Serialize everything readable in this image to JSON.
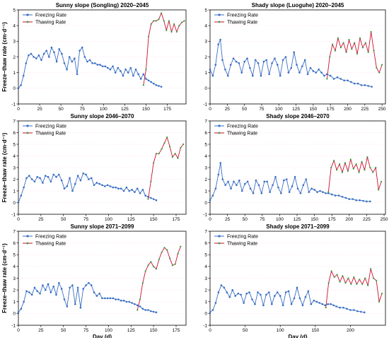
{
  "colors": {
    "freezing": "#3a6fc4",
    "thawing": "#c8102e",
    "thawing_marker": "#3a9c3a",
    "grid": "#ffb3d9",
    "axis": "#000000"
  },
  "legend": {
    "freezing": "Freezing Rate",
    "thawing": "Thawing Rate"
  },
  "chart_data": [
    {
      "type": "line",
      "title": "Sunny slope (Songling)  2020–2045",
      "xlabel": "",
      "ylabel": "Freeze–thaw rate (cm·d⁻¹)",
      "xlim": [
        0,
        197
      ],
      "ylim": [
        -1,
        5
      ],
      "xticks": [
        0,
        25,
        50,
        75,
        100,
        125,
        150,
        175
      ],
      "yticks": [
        -1,
        0,
        1,
        2,
        3,
        4,
        5
      ],
      "series": [
        {
          "name": "Freezing Rate",
          "x": [
            0,
            3,
            6,
            9,
            12,
            15,
            18,
            21,
            24,
            27,
            30,
            33,
            36,
            39,
            42,
            45,
            48,
            51,
            54,
            57,
            60,
            63,
            66,
            69,
            72,
            75,
            78,
            81,
            84,
            87,
            90,
            93,
            96,
            99,
            102,
            105,
            108,
            111,
            114,
            117,
            120,
            123,
            126,
            129,
            132,
            135,
            138,
            141,
            144,
            147,
            150,
            153,
            156,
            159,
            162,
            165,
            168
          ],
          "y": [
            0.0,
            0.2,
            0.8,
            1.6,
            2.1,
            2.2,
            2.0,
            1.9,
            2.1,
            1.8,
            2.2,
            2.4,
            2.0,
            2.6,
            2.3,
            1.7,
            2.5,
            2.2,
            1.6,
            1.2,
            2.0,
            1.7,
            1.9,
            0.9,
            2.4,
            2.6,
            2.0,
            1.7,
            1.8,
            1.6,
            1.6,
            1.5,
            1.5,
            1.4,
            1.4,
            1.3,
            1.2,
            1.4,
            1.0,
            1.3,
            1.1,
            0.8,
            1.2,
            1.0,
            1.3,
            0.8,
            1.2,
            0.9,
            0.6,
            0.9,
            0.6,
            0.5,
            0.4,
            0.3,
            0.2,
            0.15,
            0.1
          ]
        },
        {
          "name": "Thawing Rate",
          "x": [
            147,
            150,
            153,
            156,
            159,
            162,
            165,
            168,
            171,
            174,
            177,
            180,
            183,
            186,
            189,
            192,
            195
          ],
          "y": [
            0.2,
            1.2,
            3.3,
            4.1,
            4.3,
            4.3,
            4.4,
            4.8,
            4.3,
            3.7,
            4.3,
            3.6,
            4.1,
            3.6,
            4.0,
            4.2,
            4.3
          ]
        }
      ]
    },
    {
      "type": "line",
      "title": "Shady slope (Luoguhe)  2020–2045",
      "xlabel": "",
      "ylabel": "",
      "xlim": [
        0,
        255
      ],
      "ylim": [
        -1,
        5
      ],
      "xticks": [
        0,
        25,
        50,
        75,
        100,
        125,
        150,
        175,
        200,
        225,
        250
      ],
      "yticks": [
        -1,
        0,
        1,
        2,
        3,
        4,
        5
      ],
      "series": [
        {
          "name": "Freezing Rate",
          "x": [
            0,
            4,
            8,
            12,
            15,
            18,
            22,
            26,
            30,
            34,
            38,
            42,
            46,
            50,
            54,
            58,
            62,
            66,
            70,
            74,
            78,
            82,
            86,
            90,
            94,
            98,
            102,
            106,
            110,
            114,
            118,
            122,
            126,
            130,
            134,
            138,
            142,
            146,
            150,
            154,
            158,
            162,
            166,
            170,
            175,
            180,
            185,
            190,
            195,
            200,
            205,
            210,
            215,
            220,
            225,
            230,
            235
          ],
          "y": [
            1.2,
            0.8,
            1.5,
            2.8,
            3.1,
            1.8,
            1.2,
            0.8,
            1.5,
            1.9,
            1.7,
            1.6,
            1.0,
            1.7,
            1.9,
            1.3,
            0.8,
            1.8,
            1.6,
            0.8,
            1.7,
            1.8,
            0.9,
            1.6,
            1.9,
            1.5,
            0.8,
            1.8,
            2.0,
            1.0,
            1.3,
            2.3,
            1.5,
            1.0,
            1.4,
            1.8,
            0.9,
            1.3,
            1.1,
            1.0,
            1.2,
            1.0,
            0.8,
            0.9,
            0.8,
            0.6,
            0.7,
            0.6,
            0.5,
            0.5,
            0.4,
            0.3,
            0.3,
            0.2,
            0.2,
            0.15,
            0.1
          ]
        },
        {
          "name": "Thawing Rate",
          "x": [
            170,
            174,
            178,
            182,
            186,
            190,
            194,
            198,
            202,
            206,
            210,
            214,
            218,
            222,
            226,
            230,
            234,
            238,
            242,
            246,
            250
          ],
          "y": [
            0.6,
            2.0,
            2.8,
            2.4,
            3.2,
            2.6,
            2.9,
            2.3,
            3.1,
            2.5,
            2.9,
            2.2,
            3.2,
            2.6,
            2.9,
            2.3,
            3.6,
            2.4,
            1.3,
            1.0,
            1.5
          ]
        }
      ]
    },
    {
      "type": "line",
      "title": "Sunny slope  2046–2070",
      "xlabel": "",
      "ylabel": "Freeze–thaw rate (cm·d⁻¹)",
      "xlim": [
        0,
        186
      ],
      "ylim": [
        -1,
        7
      ],
      "xticks": [
        0,
        25,
        50,
        75,
        100,
        125,
        150,
        175
      ],
      "yticks": [
        -1,
        0,
        1,
        2,
        3,
        4,
        5,
        6,
        7
      ],
      "series": [
        {
          "name": "Freezing Rate",
          "x": [
            0,
            3,
            6,
            9,
            12,
            15,
            18,
            21,
            24,
            27,
            30,
            33,
            36,
            39,
            42,
            45,
            48,
            51,
            54,
            57,
            60,
            63,
            66,
            69,
            72,
            75,
            78,
            81,
            84,
            87,
            90,
            93,
            96,
            99,
            102,
            105,
            108,
            111,
            114,
            117,
            120,
            123,
            126,
            129,
            132,
            135,
            138,
            141,
            144,
            147,
            150,
            153
          ],
          "y": [
            0.0,
            0.6,
            1.3,
            2.1,
            2.3,
            2.0,
            1.8,
            2.2,
            2.1,
            1.7,
            2.3,
            2.2,
            1.8,
            2.4,
            2.2,
            2.4,
            1.9,
            1.2,
            1.4,
            2.1,
            1.0,
            1.6,
            2.3,
            1.9,
            2.5,
            2.4,
            2.0,
            2.1,
            1.5,
            1.7,
            1.6,
            1.5,
            1.4,
            1.5,
            1.4,
            1.3,
            1.3,
            1.2,
            1.2,
            1.0,
            1.3,
            1.0,
            1.1,
            0.9,
            1.2,
            0.8,
            1.1,
            0.6,
            0.5,
            0.4,
            0.3,
            0.2
          ]
        },
        {
          "name": "Thawing Rate",
          "x": [
            144,
            147,
            150,
            153,
            156,
            159,
            162,
            165,
            168,
            171,
            174,
            177,
            180,
            183
          ],
          "y": [
            0.3,
            1.8,
            3.4,
            4.2,
            4.2,
            4.6,
            5.1,
            5.6,
            4.8,
            3.9,
            4.2,
            3.8,
            4.7,
            5.0
          ]
        }
      ]
    },
    {
      "type": "line",
      "title": "Shady slope  2046–2070",
      "xlabel": "",
      "ylabel": "",
      "xlim": [
        0,
        252
      ],
      "ylim": [
        -1,
        7
      ],
      "xticks": [
        0,
        25,
        50,
        75,
        100,
        125,
        150,
        175,
        200,
        225,
        250
      ],
      "yticks": [
        -1,
        0,
        1,
        2,
        3,
        4,
        5,
        6,
        7
      ],
      "series": [
        {
          "name": "Freezing Rate",
          "x": [
            0,
            4,
            8,
            12,
            15,
            18,
            22,
            26,
            30,
            34,
            38,
            42,
            46,
            50,
            54,
            58,
            62,
            66,
            70,
            74,
            78,
            82,
            86,
            90,
            94,
            98,
            102,
            106,
            110,
            114,
            118,
            122,
            126,
            130,
            134,
            138,
            142,
            146,
            150,
            154,
            158,
            162,
            166,
            170,
            175,
            180,
            185,
            190,
            195,
            200,
            205,
            210,
            215,
            220,
            225,
            230
          ],
          "y": [
            0.2,
            0.6,
            1.2,
            2.4,
            3.4,
            2.0,
            1.5,
            1.8,
            1.2,
            1.8,
            1.5,
            1.9,
            1.0,
            1.6,
            1.8,
            1.2,
            0.8,
            1.9,
            1.5,
            0.8,
            1.8,
            1.8,
            0.9,
            1.5,
            2.2,
            1.3,
            0.8,
            1.9,
            2.0,
            0.9,
            1.4,
            2.2,
            1.2,
            0.8,
            1.5,
            2.0,
            0.9,
            1.2,
            1.1,
            0.9,
            1.0,
            0.9,
            0.8,
            0.8,
            0.7,
            0.6,
            0.6,
            0.5,
            0.4,
            0.3,
            0.3,
            0.2,
            0.2,
            0.15,
            0.1,
            0.1
          ]
        },
        {
          "name": "Thawing Rate",
          "x": [
            170,
            174,
            178,
            182,
            186,
            190,
            194,
            198,
            202,
            206,
            210,
            214,
            218,
            222,
            226,
            230,
            234,
            238,
            242,
            246
          ],
          "y": [
            0.9,
            3.0,
            3.6,
            2.8,
            3.3,
            2.6,
            3.4,
            2.7,
            3.7,
            2.9,
            3.3,
            2.6,
            3.5,
            2.8,
            3.9,
            3.0,
            2.6,
            3.0,
            1.1,
            1.8
          ]
        }
      ]
    },
    {
      "type": "line",
      "title": "Sunny slope  2071–2099",
      "xlabel": "Day (d)",
      "ylabel": "Freeze–thaw rate (cm·d⁻¹)",
      "xlim": [
        0,
        186
      ],
      "ylim": [
        -1,
        7
      ],
      "xticks": [
        0,
        25,
        50,
        75,
        100,
        125,
        150,
        175
      ],
      "yticks": [
        -1,
        0,
        1,
        2,
        3,
        4,
        5,
        6,
        7
      ],
      "series": [
        {
          "name": "Freezing Rate",
          "x": [
            0,
            3,
            6,
            9,
            12,
            15,
            18,
            21,
            24,
            27,
            30,
            33,
            36,
            39,
            42,
            45,
            48,
            51,
            54,
            57,
            60,
            63,
            66,
            69,
            72,
            75,
            78,
            81,
            84,
            87,
            90,
            93,
            96,
            99,
            102,
            105,
            108,
            111,
            114,
            117,
            120,
            123,
            126,
            129,
            132,
            135,
            138,
            141,
            144,
            147,
            150,
            153
          ],
          "y": [
            0.1,
            0.4,
            1.0,
            1.9,
            1.8,
            1.6,
            2.2,
            1.9,
            1.7,
            2.4,
            2.0,
            2.5,
            1.8,
            2.3,
            1.6,
            2.6,
            2.1,
            1.2,
            0.6,
            2.2,
            2.4,
            0.8,
            2.2,
            0.5,
            2.1,
            2.4,
            2.6,
            2.4,
            1.8,
            1.5,
            1.7,
            1.3,
            1.3,
            1.3,
            1.3,
            1.3,
            1.2,
            1.2,
            1.1,
            1.1,
            1.0,
            1.0,
            0.9,
            0.8,
            0.7,
            0.6,
            0.4,
            0.3,
            0.3,
            0.2,
            0.15,
            0.1
          ]
        },
        {
          "name": "Thawing Rate",
          "x": [
            132,
            135,
            138,
            141,
            144,
            147,
            150,
            153,
            156,
            159,
            162,
            165,
            168,
            171,
            174,
            177,
            180
          ],
          "y": [
            0.3,
            1.2,
            2.6,
            3.6,
            4.1,
            4.4,
            4.0,
            3.8,
            4.6,
            5.2,
            5.6,
            5.4,
            4.7,
            4.1,
            4.2,
            5.1,
            5.7
          ]
        }
      ]
    },
    {
      "type": "line",
      "title": "Shady slope  2071–2099",
      "xlabel": "Day (d)",
      "ylabel": "",
      "xlim": [
        0,
        250
      ],
      "ylim": [
        -1,
        7
      ],
      "xticks": [
        0,
        50,
        100,
        150,
        200
      ],
      "yticks": [
        -1,
        0,
        1,
        2,
        3,
        4,
        5,
        6,
        7
      ],
      "series": [
        {
          "name": "Freezing Rate",
          "x": [
            0,
            4,
            8,
            12,
            16,
            20,
            24,
            28,
            32,
            36,
            40,
            44,
            48,
            52,
            56,
            60,
            64,
            68,
            72,
            76,
            80,
            84,
            88,
            92,
            96,
            100,
            104,
            108,
            112,
            116,
            120,
            124,
            128,
            132,
            136,
            140,
            144,
            148,
            152,
            156,
            160,
            164,
            168,
            172,
            176,
            180,
            185,
            190,
            195,
            200,
            205,
            210,
            215,
            220
          ],
          "y": [
            0.1,
            0.3,
            0.9,
            1.8,
            2.4,
            2.2,
            1.8,
            1.4,
            2.0,
            1.5,
            1.7,
            1.6,
            0.9,
            1.7,
            1.8,
            1.2,
            0.8,
            1.8,
            1.6,
            0.7,
            1.6,
            1.8,
            0.8,
            1.5,
            1.8,
            1.5,
            0.7,
            1.8,
            1.9,
            0.8,
            1.3,
            2.2,
            1.3,
            0.7,
            1.4,
            1.9,
            0.8,
            1.1,
            1.0,
            0.9,
            0.8,
            0.7,
            0.8,
            0.8,
            0.7,
            0.6,
            0.5,
            0.5,
            0.4,
            0.3,
            0.3,
            0.2,
            0.15,
            0.1
          ]
        },
        {
          "name": "Thawing Rate",
          "x": [
            165,
            169,
            173,
            177,
            181,
            185,
            189,
            193,
            197,
            201,
            205,
            209,
            213,
            217,
            221,
            225,
            229,
            233,
            237,
            241,
            245
          ],
          "y": [
            0.5,
            2.6,
            3.6,
            3.1,
            3.3,
            2.7,
            3.2,
            2.6,
            3.0,
            2.5,
            3.1,
            2.5,
            2.9,
            2.5,
            3.0,
            2.4,
            3.8,
            3.0,
            2.8,
            1.0,
            1.7
          ]
        }
      ]
    }
  ]
}
